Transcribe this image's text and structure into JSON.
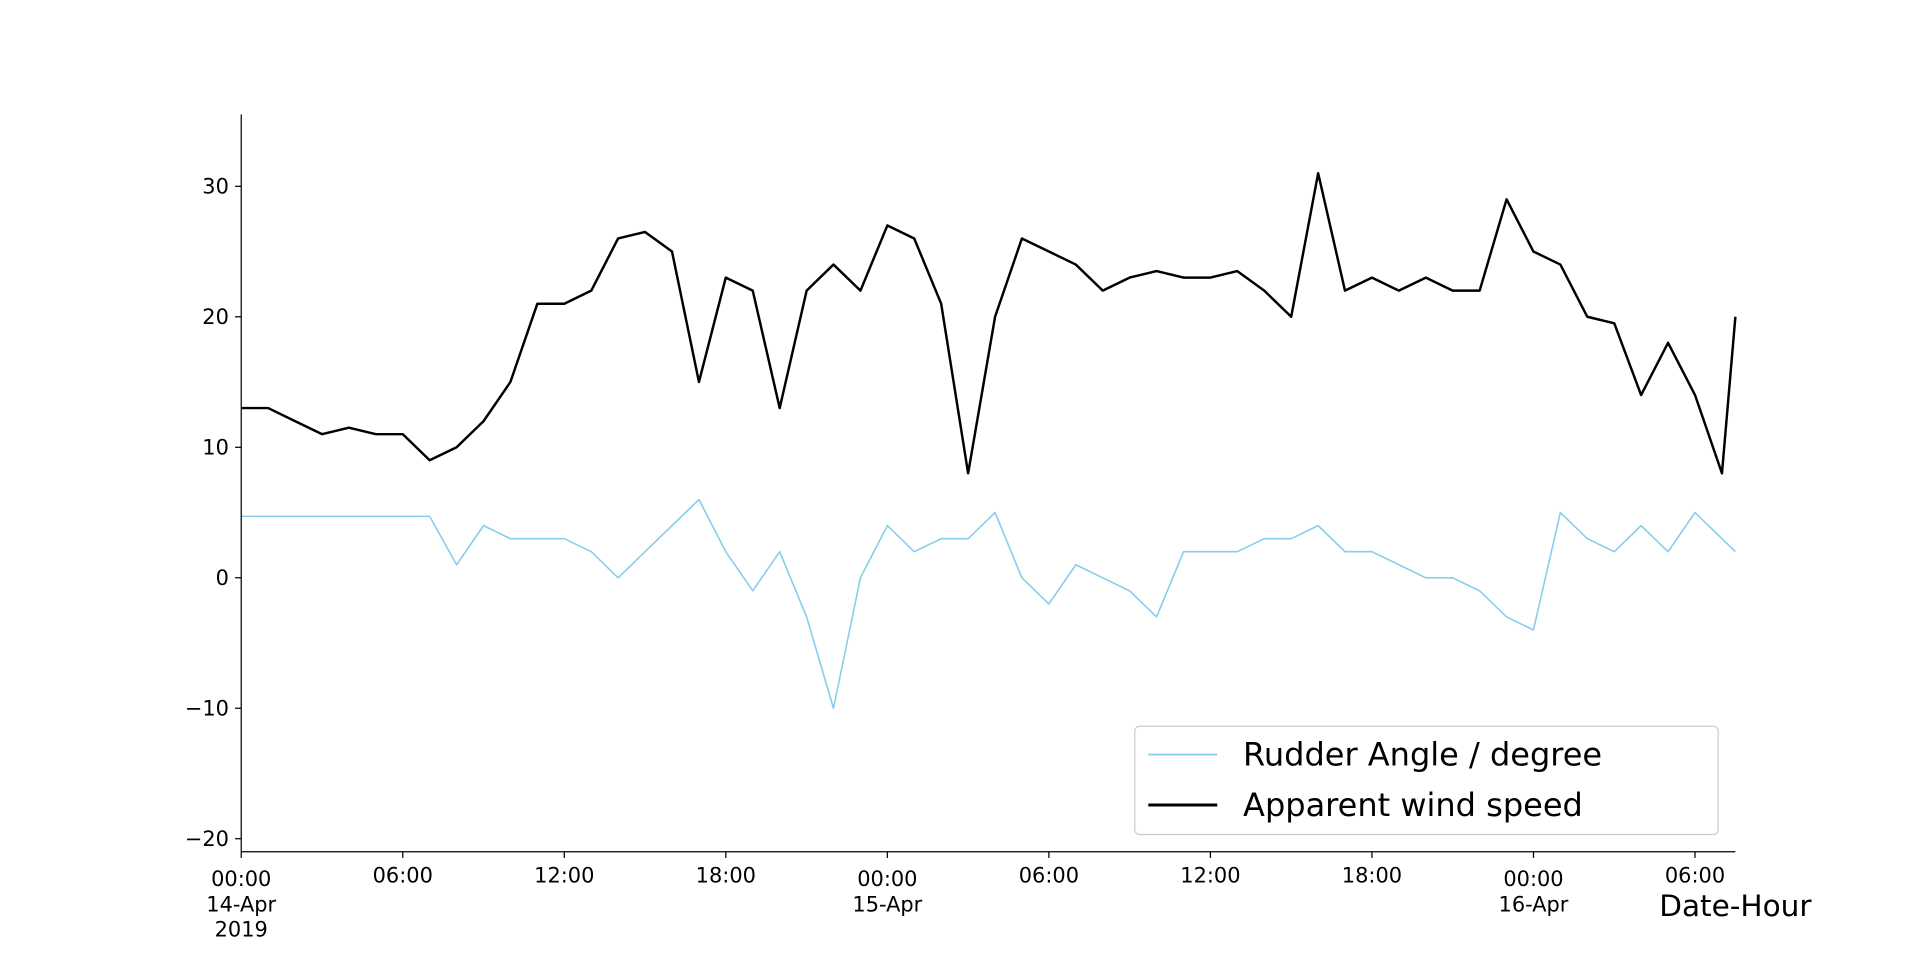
{
  "chart_data": {
    "type": "line",
    "x": [
      "2019-04-14 00:00",
      "2019-04-14 01:00",
      "2019-04-14 02:00",
      "2019-04-14 03:00",
      "2019-04-14 04:00",
      "2019-04-14 05:00",
      "2019-04-14 06:00",
      "2019-04-14 07:00",
      "2019-04-14 08:00",
      "2019-04-14 09:00",
      "2019-04-14 10:00",
      "2019-04-14 11:00",
      "2019-04-14 12:00",
      "2019-04-14 13:00",
      "2019-04-14 14:00",
      "2019-04-14 15:00",
      "2019-04-14 16:00",
      "2019-04-14 17:00",
      "2019-04-14 18:00",
      "2019-04-14 19:00",
      "2019-04-14 20:00",
      "2019-04-14 21:00",
      "2019-04-14 22:00",
      "2019-04-14 23:00",
      "2019-04-15 00:00",
      "2019-04-15 01:00",
      "2019-04-15 02:00",
      "2019-04-15 03:00",
      "2019-04-15 04:00",
      "2019-04-15 05:00",
      "2019-04-15 06:00",
      "2019-04-15 07:00",
      "2019-04-15 08:00",
      "2019-04-15 09:00",
      "2019-04-15 10:00",
      "2019-04-15 11:00",
      "2019-04-15 12:00",
      "2019-04-15 13:00",
      "2019-04-15 14:00",
      "2019-04-15 15:00",
      "2019-04-15 16:00",
      "2019-04-15 17:00",
      "2019-04-15 18:00",
      "2019-04-15 19:00",
      "2019-04-15 20:00",
      "2019-04-15 21:00",
      "2019-04-15 22:00",
      "2019-04-15 23:00",
      "2019-04-16 00:00",
      "2019-04-16 01:00",
      "2019-04-16 02:00",
      "2019-04-16 03:00",
      "2019-04-16 04:00",
      "2019-04-16 05:00",
      "2019-04-16 06:00",
      "2019-04-16 07:00",
      "2019-04-16 07:30"
    ],
    "series": [
      {
        "name": "Rudder Angle / degree",
        "color": "#87ceeb",
        "values": [
          4.7,
          4.7,
          4.7,
          4.7,
          4.7,
          4.7,
          4.7,
          4.7,
          1,
          4,
          3,
          3,
          3,
          2,
          0,
          2,
          4,
          6,
          2,
          -1,
          2,
          -3,
          -10,
          0,
          4,
          2,
          3,
          3,
          5,
          0,
          -2,
          1,
          0,
          -1,
          -3,
          2,
          2,
          2,
          3,
          3,
          4,
          2,
          2,
          1,
          0,
          0,
          -1,
          -3,
          -4,
          5,
          3,
          2,
          4,
          2,
          5,
          3,
          2
        ]
      },
      {
        "name": "Apparent wind speed",
        "color": "#000000",
        "values": [
          13,
          13,
          12,
          11,
          11.5,
          11,
          11,
          9,
          10,
          12,
          15,
          21,
          21,
          22,
          26,
          26.5,
          25,
          15,
          23,
          22,
          13,
          22,
          24,
          22,
          27,
          26,
          21,
          8,
          20,
          26,
          25,
          24,
          22,
          23,
          23.5,
          23,
          23,
          23.5,
          22,
          20,
          31,
          22,
          23,
          22,
          23,
          22,
          22,
          29,
          25,
          24,
          20,
          19.5,
          14,
          18,
          14,
          8,
          20
        ]
      }
    ],
    "xlabel": "Date-Hour",
    "xlim": [
      "2019-04-14 00:00",
      "2019-04-16 07:30"
    ],
    "xticks": [
      {
        "value": "2019-04-14 00:00",
        "label": "00:00\n14-Apr\n2019"
      },
      {
        "value": "2019-04-14 06:00",
        "label": "06:00"
      },
      {
        "value": "2019-04-14 12:00",
        "label": "12:00"
      },
      {
        "value": "2019-04-14 18:00",
        "label": "18:00"
      },
      {
        "value": "2019-04-15 00:00",
        "label": "00:00\n15-Apr"
      },
      {
        "value": "2019-04-15 06:00",
        "label": "06:00"
      },
      {
        "value": "2019-04-15 12:00",
        "label": "12:00"
      },
      {
        "value": "2019-04-15 18:00",
        "label": "18:00"
      },
      {
        "value": "2019-04-16 00:00",
        "label": "00:00\n16-Apr"
      },
      {
        "value": "2019-04-16 06:00",
        "label": "06:00"
      }
    ],
    "ylim": [
      -21,
      35.5
    ],
    "yticks": [
      {
        "value": -20,
        "label": "−20"
      },
      {
        "value": -10,
        "label": "−10"
      },
      0,
      10,
      20,
      30
    ],
    "legend": "lower right"
  }
}
